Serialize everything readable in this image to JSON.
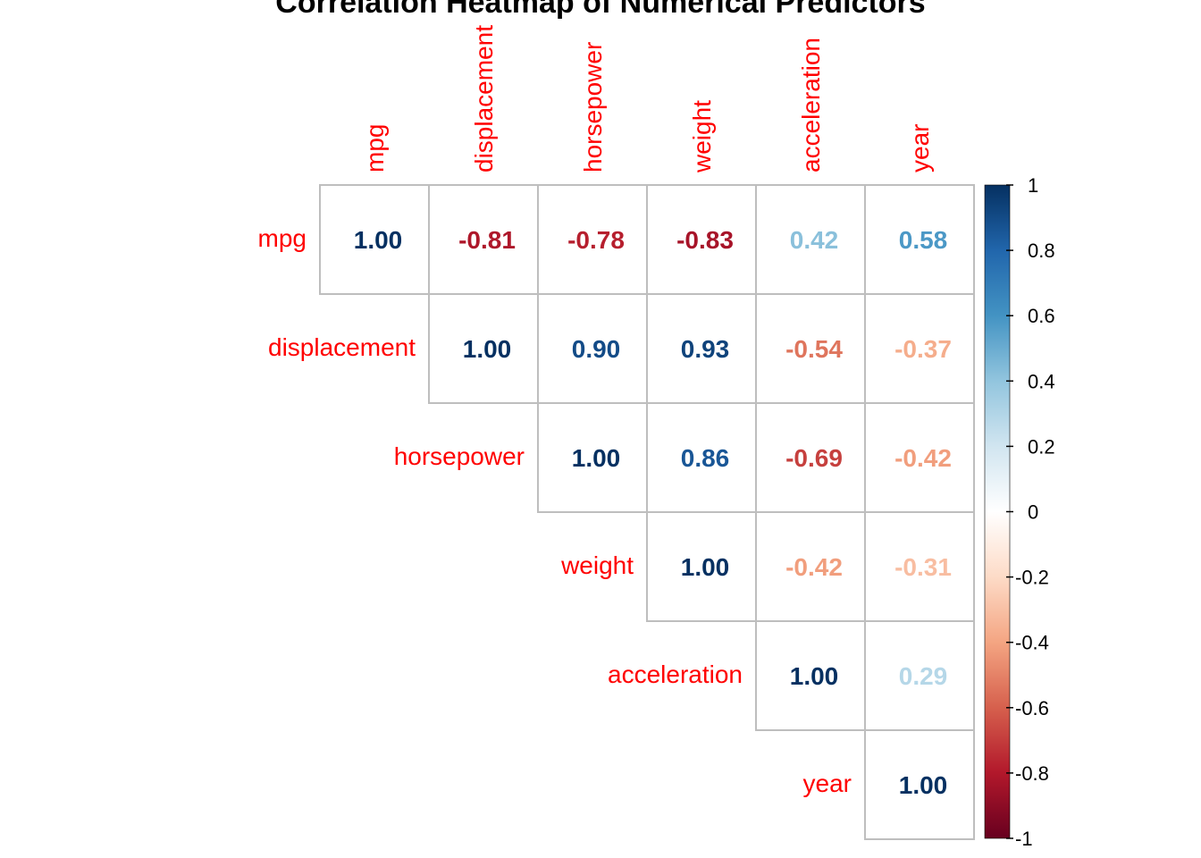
{
  "chart_data": {
    "type": "heatmap",
    "title": "Correlation Heatmap of Numerical Predictors",
    "variables": [
      "mpg",
      "displacement",
      "horsepower",
      "weight",
      "acceleration",
      "year"
    ],
    "layout": "upper-triangle",
    "matrix": [
      [
        1.0,
        -0.81,
        -0.78,
        -0.83,
        0.42,
        0.58
      ],
      [
        null,
        1.0,
        0.9,
        0.93,
        -0.54,
        -0.37
      ],
      [
        null,
        null,
        1.0,
        0.86,
        -0.69,
        -0.42
      ],
      [
        null,
        null,
        null,
        1.0,
        -0.42,
        -0.31
      ],
      [
        null,
        null,
        null,
        null,
        1.0,
        0.29
      ],
      [
        null,
        null,
        null,
        null,
        null,
        1.0
      ]
    ],
    "colorbar": {
      "range": [
        -1,
        1
      ],
      "ticks": [
        "1",
        "0.8",
        "0.6",
        "0.4",
        "0.2",
        "0",
        "-0.2",
        "-0.4",
        "-0.6",
        "-0.8",
        "-1"
      ]
    },
    "colors": {
      "label": "#ff0000",
      "grid": "#bebebe",
      "scale": [
        "#67001f",
        "#b2182b",
        "#d6604d",
        "#f4a582",
        "#fddbc7",
        "#ffffff",
        "#d1e5f0",
        "#92c5de",
        "#4393c3",
        "#2166ac",
        "#053061"
      ]
    }
  }
}
